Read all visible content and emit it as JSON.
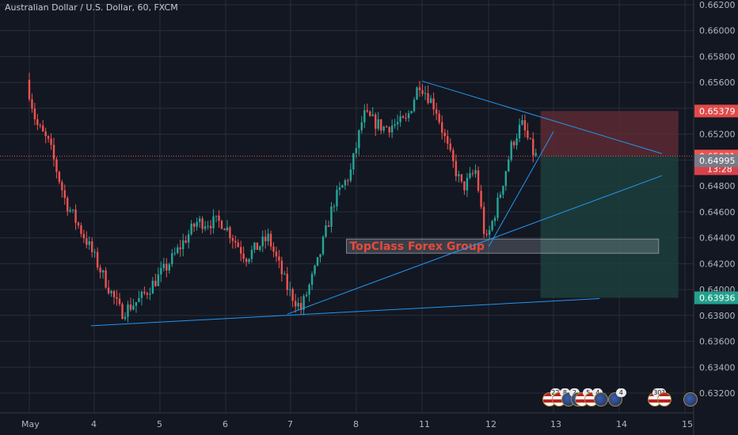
{
  "title": "Australian Dollar / U.S. Dollar, 60, FXCM",
  "watermark": "TopClass Forex Group",
  "countdown": "13:28",
  "colors": {
    "background": "#131722",
    "grid": "#2a2e39",
    "bull": "#26a69a",
    "bear": "#ef5350",
    "trendline": "#2196f3",
    "stop_zone": "#5c2a33",
    "target_zone": "#1d3e3c",
    "axis_text": "#b2b5be"
  },
  "chart_data": {
    "type": "candlestick",
    "ylim": [
      0.6308,
      0.6624
    ],
    "y_ticks": [
      "0.66200",
      "0.66000",
      "0.65800",
      "0.65600",
      "0.65400",
      "0.65200",
      "0.65000",
      "0.64800",
      "0.64600",
      "0.64400",
      "0.64200",
      "0.64000",
      "0.63800",
      "0.63600",
      "0.63400",
      "0.63200"
    ],
    "x_ticks": [
      "May",
      "4",
      "5",
      "6",
      "7",
      "8",
      "11",
      "12",
      "13",
      "14",
      "15"
    ],
    "price_tags": [
      {
        "label": "0.65379",
        "value": 0.65379,
        "style": "stop"
      },
      {
        "label": "0.65031",
        "value": 0.65031,
        "style": "current"
      },
      {
        "label": "0.64995",
        "value": 0.64995,
        "style": "neutral"
      },
      {
        "label": "0.63936",
        "value": 0.63936,
        "style": "target"
      }
    ],
    "price_path": [
      {
        "day": 0.0,
        "price": 0.6562
      },
      {
        "day": 0.15,
        "price": 0.6528
      },
      {
        "day": 0.35,
        "price": 0.6512
      },
      {
        "day": 0.6,
        "price": 0.6468
      },
      {
        "day": 0.95,
        "price": 0.6435
      },
      {
        "day": 1.2,
        "price": 0.6408
      },
      {
        "day": 1.45,
        "price": 0.6382
      },
      {
        "day": 1.75,
        "price": 0.6393
      },
      {
        "day": 2.15,
        "price": 0.6418
      },
      {
        "day": 2.6,
        "price": 0.6452
      },
      {
        "day": 3.0,
        "price": 0.6452
      },
      {
        "day": 3.35,
        "price": 0.6425
      },
      {
        "day": 3.7,
        "price": 0.644
      },
      {
        "day": 4.0,
        "price": 0.64
      },
      {
        "day": 4.2,
        "price": 0.6385
      },
      {
        "day": 4.45,
        "price": 0.642
      },
      {
        "day": 4.7,
        "price": 0.6468
      },
      {
        "day": 4.95,
        "price": 0.649
      },
      {
        "day": 5.15,
        "price": 0.6535
      },
      {
        "day": 5.45,
        "price": 0.6525
      },
      {
        "day": 5.8,
        "price": 0.653
      },
      {
        "day": 6.0,
        "price": 0.656
      },
      {
        "day": 6.25,
        "price": 0.654
      },
      {
        "day": 6.45,
        "price": 0.6505
      },
      {
        "day": 6.65,
        "price": 0.6478
      },
      {
        "day": 6.85,
        "price": 0.6492
      },
      {
        "day": 7.0,
        "price": 0.6435
      },
      {
        "day": 7.2,
        "price": 0.647
      },
      {
        "day": 7.4,
        "price": 0.6512
      },
      {
        "day": 7.55,
        "price": 0.6528
      },
      {
        "day": 7.75,
        "price": 0.6503
      }
    ],
    "trendlines": [
      {
        "name": "lower-support",
        "from": {
          "day": 0.95,
          "price": 0.6372
        },
        "to": {
          "day": 8.7,
          "price": 0.6393
        }
      },
      {
        "name": "rising-trend",
        "from": {
          "day": 3.95,
          "price": 0.6381
        },
        "to": {
          "day": 9.65,
          "price": 0.6488
        }
      },
      {
        "name": "upper-wedge",
        "from": {
          "day": 6.0,
          "price": 0.6561
        },
        "to": {
          "day": 9.65,
          "price": 0.6505
        }
      },
      {
        "name": "wedge-low",
        "from": {
          "day": 7.0,
          "price": 0.6433
        },
        "to": {
          "day": 8.0,
          "price": 0.6522
        }
      }
    ],
    "position": {
      "entry": 0.65031,
      "stop": 0.65379,
      "target": 0.63936,
      "start_day": 7.8,
      "end_day": 9.9
    },
    "watermark_box": {
      "low": 0.6428,
      "high": 0.6439,
      "start_day": 4.85,
      "end_day": 9.6
    }
  },
  "events": [
    {
      "day": 7.95,
      "icons": [
        "us",
        "us",
        "au",
        "au"
      ],
      "counts": [
        "22",
        "8",
        "2",
        ""
      ]
    },
    {
      "day": 8.45,
      "icons": [
        "us",
        "us",
        "au"
      ],
      "counts": [
        "5",
        "4",
        ""
      ]
    },
    {
      "day": 8.95,
      "icons": [
        "au"
      ],
      "counts": [
        "4"
      ]
    },
    {
      "day": 9.55,
      "icons": [
        "us",
        "us"
      ],
      "counts": [
        "30?",
        ""
      ]
    },
    {
      "day": 10.1,
      "icons": [
        "au"
      ],
      "counts": [
        ""
      ]
    }
  ]
}
